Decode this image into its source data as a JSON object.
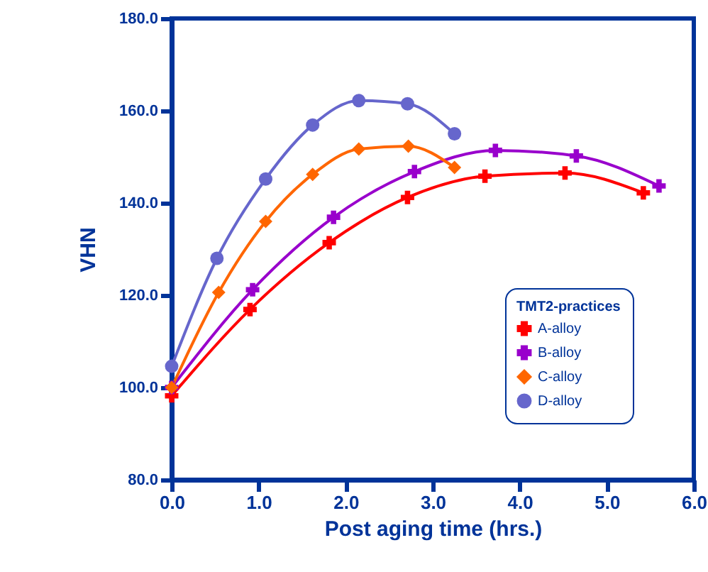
{
  "chart_data": {
    "type": "line",
    "xlabel": "Post aging time (hrs.)",
    "ylabel": "VHN",
    "legend_title": "TMT2-practices",
    "legend": "right",
    "grid": false,
    "xlim": [
      0,
      6
    ],
    "xticks": [
      {
        "value": 0,
        "label": "0.0"
      },
      {
        "value": 1,
        "label": "1.0"
      },
      {
        "value": 2,
        "label": "2.0"
      },
      {
        "value": 3,
        "label": "3.0"
      },
      {
        "value": 4,
        "label": "4.0"
      },
      {
        "value": 5,
        "label": "5.0"
      },
      {
        "value": 6,
        "label": "6.0"
      }
    ],
    "ylim": [
      80,
      180
    ],
    "yticks": [
      {
        "value": 80,
        "label": "80.0"
      },
      {
        "value": 100,
        "label": "100.0"
      },
      {
        "value": 120,
        "label": "120.0"
      },
      {
        "value": 140,
        "label": "140.0"
      },
      {
        "value": 160,
        "label": "160.0"
      },
      {
        "value": 180,
        "label": "180.0"
      }
    ],
    "series": [
      {
        "name": "A-alloy",
        "color": "#ff0000",
        "marker": "cross",
        "x": [
          0,
          0.9,
          1.81,
          2.71,
          3.6,
          4.52,
          5.42
        ],
        "values": [
          98.2,
          116.9,
          131.4,
          141.2,
          145.8,
          146.5,
          142.2
        ]
      },
      {
        "name": "B-alloy",
        "color": "#9900cc",
        "marker": "cross",
        "x": [
          0,
          0.93,
          1.86,
          2.79,
          3.72,
          4.65,
          5.6
        ],
        "values": [
          100,
          121.2,
          136.9,
          146.8,
          151.4,
          150.2,
          143.7
        ]
      },
      {
        "name": "C-alloy",
        "color": "#ff6600",
        "marker": "diamond",
        "x": [
          0,
          0.54,
          1.08,
          1.62,
          2.15,
          2.72,
          3.25
        ],
        "values": [
          100,
          120.6,
          136,
          146.2,
          151.7,
          152.3,
          147.7
        ]
      },
      {
        "name": "D-alloy",
        "color": "#6666cc",
        "marker": "circle",
        "x": [
          0,
          0.52,
          1.08,
          1.62,
          2.15,
          2.71,
          3.25
        ],
        "values": [
          104.6,
          128,
          145.2,
          156.9,
          162.2,
          161.5,
          155
        ]
      }
    ]
  }
}
